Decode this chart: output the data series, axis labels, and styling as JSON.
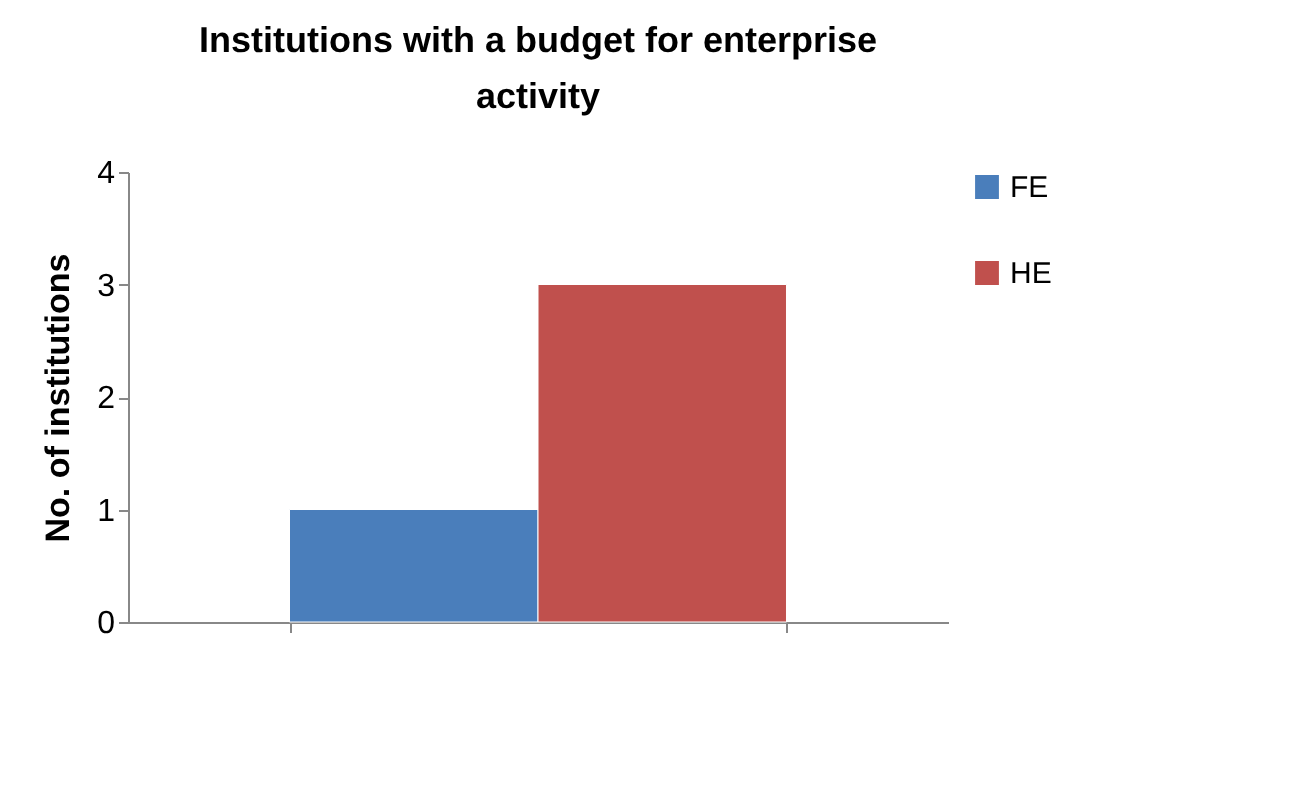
{
  "chart_data": {
    "type": "bar",
    "title": "Institutions with a budget for enterprise activity",
    "ylabel": "No. of institutions",
    "categories": [
      null
    ],
    "series": [
      {
        "name": "FE",
        "color": "#4a7ebb",
        "values": [
          1
        ]
      },
      {
        "name": "HE",
        "color": "#c0504d",
        "values": [
          3
        ]
      }
    ],
    "ylim": [
      0,
      4
    ],
    "yticks": [
      0,
      1,
      2,
      3,
      4
    ],
    "legend": "right"
  }
}
